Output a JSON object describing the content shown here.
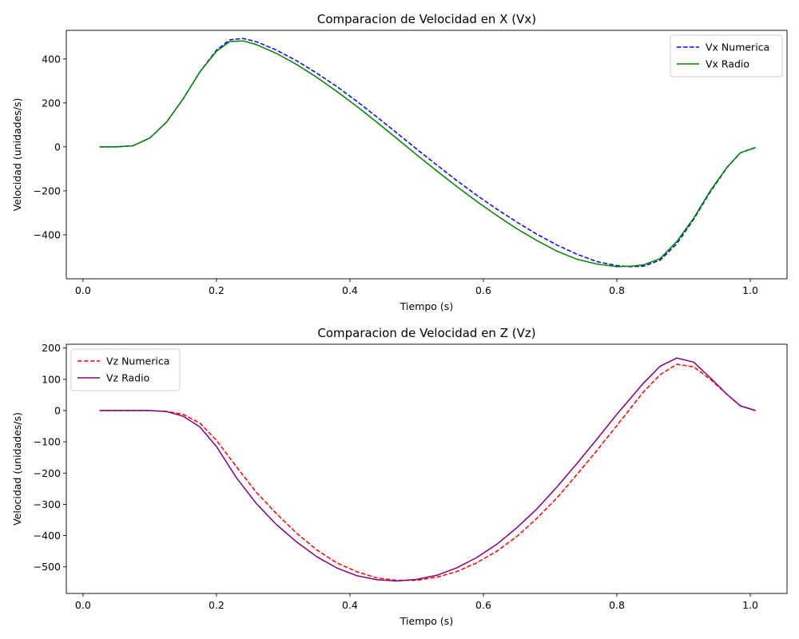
{
  "chart_data": [
    {
      "type": "line",
      "title": "Comparacion de Velocidad en X (Vx)",
      "xlabel": "Tiempo (s)",
      "ylabel": "Velocidad (unidades/s)",
      "xlim": [
        -0.025,
        1.055
      ],
      "ylim": [
        -600,
        530
      ],
      "xticks": [
        0.0,
        0.2,
        0.4,
        0.6,
        0.8,
        1.0
      ],
      "xtick_labels": [
        "0.0",
        "0.2",
        "0.4",
        "0.6",
        "0.8",
        "1.0"
      ],
      "yticks": [
        -400,
        -200,
        0,
        200,
        400
      ],
      "ytick_labels": [
        "−400",
        "−200",
        "0",
        "200",
        "400"
      ],
      "grid": false,
      "legend": "top-right",
      "series": [
        {
          "name": "Vx Numerica",
          "color": "#0000ff",
          "dash": "dashed",
          "x": [
            0.025,
            0.05,
            0.075,
            0.1,
            0.125,
            0.15,
            0.175,
            0.2,
            0.22,
            0.24,
            0.26,
            0.29,
            0.32,
            0.35,
            0.38,
            0.41,
            0.44,
            0.47,
            0.5,
            0.53,
            0.56,
            0.59,
            0.62,
            0.65,
            0.68,
            0.71,
            0.74,
            0.77,
            0.8,
            0.82,
            0.84,
            0.865,
            0.89,
            0.915,
            0.94,
            0.965,
            0.985,
            1.008
          ],
          "y": [
            0,
            0,
            5,
            40,
            112,
            218,
            340,
            440,
            487,
            493,
            478,
            440,
            392,
            336,
            275,
            208,
            137,
            64,
            -10,
            -82,
            -153,
            -220,
            -283,
            -342,
            -397,
            -446,
            -488,
            -522,
            -540,
            -545,
            -543,
            -515,
            -440,
            -330,
            -205,
            -95,
            -27,
            -3
          ]
        },
        {
          "name": "Vx Radio",
          "color": "#008000",
          "dash": "solid",
          "x": [
            0.025,
            0.05,
            0.075,
            0.1,
            0.125,
            0.15,
            0.175,
            0.2,
            0.22,
            0.24,
            0.26,
            0.29,
            0.32,
            0.35,
            0.38,
            0.41,
            0.44,
            0.47,
            0.5,
            0.53,
            0.56,
            0.59,
            0.62,
            0.65,
            0.68,
            0.71,
            0.74,
            0.77,
            0.8,
            0.82,
            0.84,
            0.865,
            0.89,
            0.915,
            0.94,
            0.965,
            0.985,
            1.008
          ],
          "y": [
            0,
            0,
            5,
            40,
            112,
            218,
            340,
            435,
            479,
            482,
            465,
            425,
            375,
            317,
            253,
            185,
            113,
            39,
            -36,
            -109,
            -180,
            -248,
            -312,
            -372,
            -426,
            -474,
            -511,
            -533,
            -545,
            -543,
            -537,
            -508,
            -430,
            -325,
            -200,
            -93,
            -27,
            -3
          ]
        }
      ]
    },
    {
      "type": "line",
      "title": "Comparacion de Velocidad en Z (Vz)",
      "xlabel": "Tiempo (s)",
      "ylabel": "Velocidad (unidades/s)",
      "xlim": [
        -0.025,
        1.055
      ],
      "ylim": [
        -585,
        212
      ],
      "xticks": [
        0.0,
        0.2,
        0.4,
        0.6,
        0.8,
        1.0
      ],
      "xtick_labels": [
        "0.0",
        "0.2",
        "0.4",
        "0.6",
        "0.8",
        "1.0"
      ],
      "yticks": [
        -500,
        -400,
        -300,
        -200,
        -100,
        0,
        100,
        200
      ],
      "ytick_labels": [
        "−500",
        "−400",
        "−300",
        "−200",
        "−100",
        "0",
        "100",
        "200"
      ],
      "grid": false,
      "legend": "top-left",
      "series": [
        {
          "name": "Vz Numerica",
          "color": "#ff0000",
          "dash": "dashed",
          "x": [
            0.025,
            0.05,
            0.075,
            0.1,
            0.125,
            0.15,
            0.175,
            0.2,
            0.23,
            0.26,
            0.29,
            0.32,
            0.35,
            0.38,
            0.41,
            0.44,
            0.47,
            0.5,
            0.53,
            0.56,
            0.59,
            0.62,
            0.65,
            0.68,
            0.71,
            0.74,
            0.77,
            0.8,
            0.84,
            0.865,
            0.89,
            0.915,
            0.94,
            0.965,
            0.985,
            1.008
          ],
          "y": [
            0,
            0,
            0,
            0,
            -3,
            -12,
            -40,
            -95,
            -180,
            -262,
            -330,
            -392,
            -445,
            -487,
            -515,
            -535,
            -543,
            -543,
            -533,
            -515,
            -487,
            -450,
            -403,
            -345,
            -280,
            -205,
            -128,
            -48,
            60,
            115,
            148,
            140,
            100,
            52,
            15,
            0
          ]
        },
        {
          "name": "Vz Radio",
          "color": "#800080",
          "dash": "solid",
          "x": [
            0.025,
            0.05,
            0.075,
            0.1,
            0.125,
            0.15,
            0.175,
            0.2,
            0.23,
            0.26,
            0.29,
            0.32,
            0.35,
            0.38,
            0.41,
            0.44,
            0.47,
            0.5,
            0.53,
            0.56,
            0.59,
            0.62,
            0.65,
            0.68,
            0.71,
            0.74,
            0.77,
            0.8,
            0.84,
            0.865,
            0.89,
            0.915,
            0.94,
            0.965,
            0.985,
            1.008
          ],
          "y": [
            0,
            0,
            0,
            0,
            -3,
            -18,
            -52,
            -115,
            -215,
            -298,
            -365,
            -420,
            -467,
            -503,
            -528,
            -541,
            -545,
            -540,
            -527,
            -503,
            -470,
            -428,
            -375,
            -315,
            -245,
            -170,
            -92,
            -12,
            88,
            142,
            168,
            155,
            105,
            52,
            15,
            0
          ]
        }
      ]
    }
  ]
}
